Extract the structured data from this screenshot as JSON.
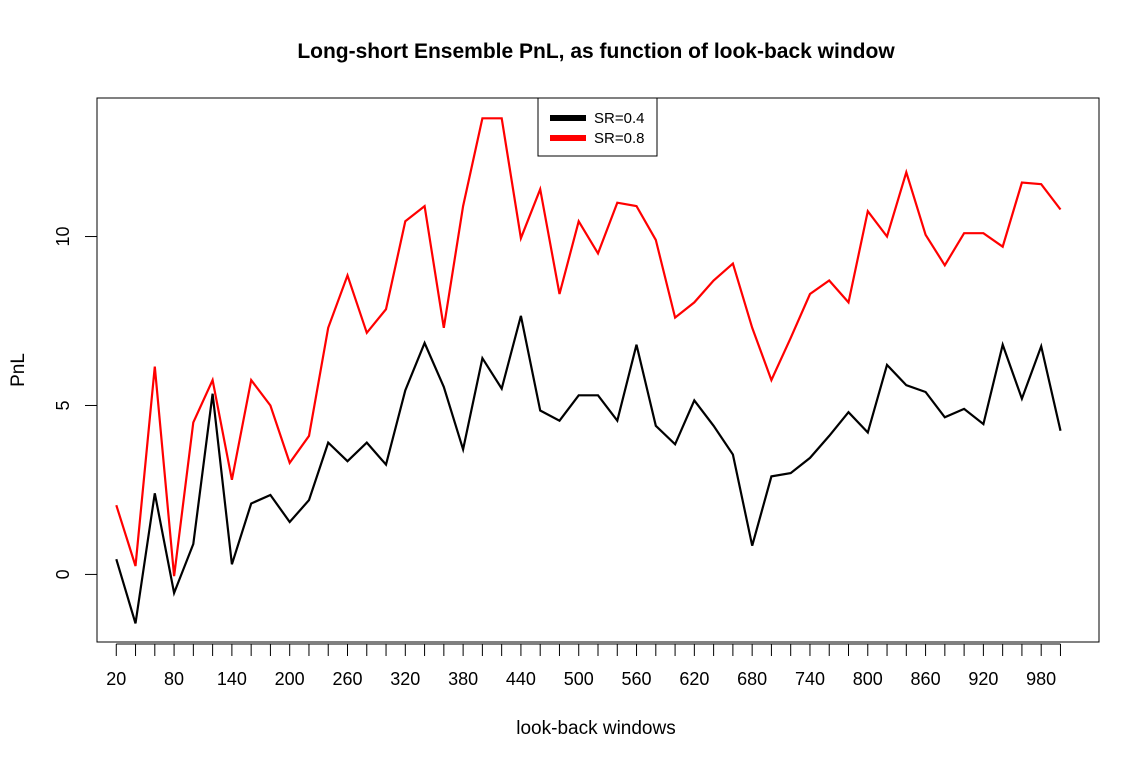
{
  "chart_data": {
    "type": "line",
    "title": "Long-short Ensemble PnL, as function of look-back window",
    "xlabel": "look-back windows",
    "ylabel": "PnL",
    "x": [
      20,
      40,
      60,
      80,
      100,
      120,
      140,
      160,
      180,
      200,
      220,
      240,
      260,
      280,
      300,
      320,
      340,
      360,
      380,
      400,
      420,
      440,
      460,
      480,
      500,
      520,
      540,
      560,
      580,
      600,
      620,
      640,
      660,
      680,
      700,
      720,
      740,
      760,
      780,
      800,
      820,
      840,
      860,
      880,
      900,
      920,
      940,
      960,
      980,
      1000
    ],
    "x_tick_labels": [
      "20",
      "80",
      "140",
      "200",
      "260",
      "320",
      "380",
      "440",
      "500",
      "560",
      "620",
      "680",
      "740",
      "800",
      "860",
      "920",
      "980"
    ],
    "x_tick_positions": [
      20,
      80,
      140,
      200,
      260,
      320,
      380,
      440,
      500,
      560,
      620,
      680,
      740,
      800,
      860,
      920,
      980
    ],
    "x_minor_ticks": [
      20,
      40,
      60,
      80,
      100,
      120,
      140,
      160,
      180,
      200,
      220,
      240,
      260,
      280,
      300,
      320,
      340,
      360,
      380,
      400,
      420,
      440,
      460,
      480,
      500,
      520,
      540,
      560,
      580,
      600,
      620,
      640,
      660,
      680,
      700,
      720,
      740,
      760,
      780,
      800,
      820,
      840,
      860,
      880,
      900,
      920,
      940,
      960,
      980,
      1000
    ],
    "y_ticks": [
      0,
      5,
      10
    ],
    "y_tick_labels": [
      "0",
      "5",
      "10"
    ],
    "xlim": [
      0,
      1040
    ],
    "ylim": [
      -2.0,
      14.1
    ],
    "grid": false,
    "legend_position": "top-center",
    "series": [
      {
        "name": "SR=0.4",
        "color": "#000000",
        "values": [
          0.45,
          -1.45,
          2.4,
          -0.55,
          0.9,
          5.35,
          0.3,
          2.1,
          2.35,
          1.55,
          2.2,
          3.9,
          3.35,
          3.9,
          3.25,
          5.45,
          6.85,
          5.55,
          3.7,
          6.4,
          5.5,
          7.65,
          4.85,
          4.55,
          5.3,
          5.3,
          4.55,
          6.8,
          4.4,
          3.85,
          5.15,
          4.4,
          3.55,
          0.85,
          2.9,
          3.0,
          3.45,
          4.1,
          4.8,
          4.2,
          6.2,
          5.6,
          5.4,
          4.65,
          4.9,
          4.45,
          6.8,
          5.2,
          6.75,
          4.25
        ]
      },
      {
        "name": "SR=0.8",
        "color": "#ff0000",
        "values": [
          2.05,
          0.25,
          6.15,
          -0.05,
          4.5,
          5.75,
          2.8,
          5.75,
          5.0,
          3.3,
          4.1,
          7.3,
          8.85,
          7.15,
          7.85,
          10.45,
          10.9,
          7.3,
          10.9,
          13.5,
          13.5,
          9.95,
          11.4,
          8.3,
          10.45,
          9.5,
          11.0,
          10.9,
          9.9,
          7.6,
          8.05,
          8.7,
          9.2,
          7.3,
          5.75,
          7.0,
          8.3,
          8.7,
          8.05,
          10.75,
          10.0,
          11.9,
          10.05,
          9.15,
          10.1,
          10.1,
          9.7,
          11.6,
          11.55,
          10.8
        ]
      }
    ]
  }
}
